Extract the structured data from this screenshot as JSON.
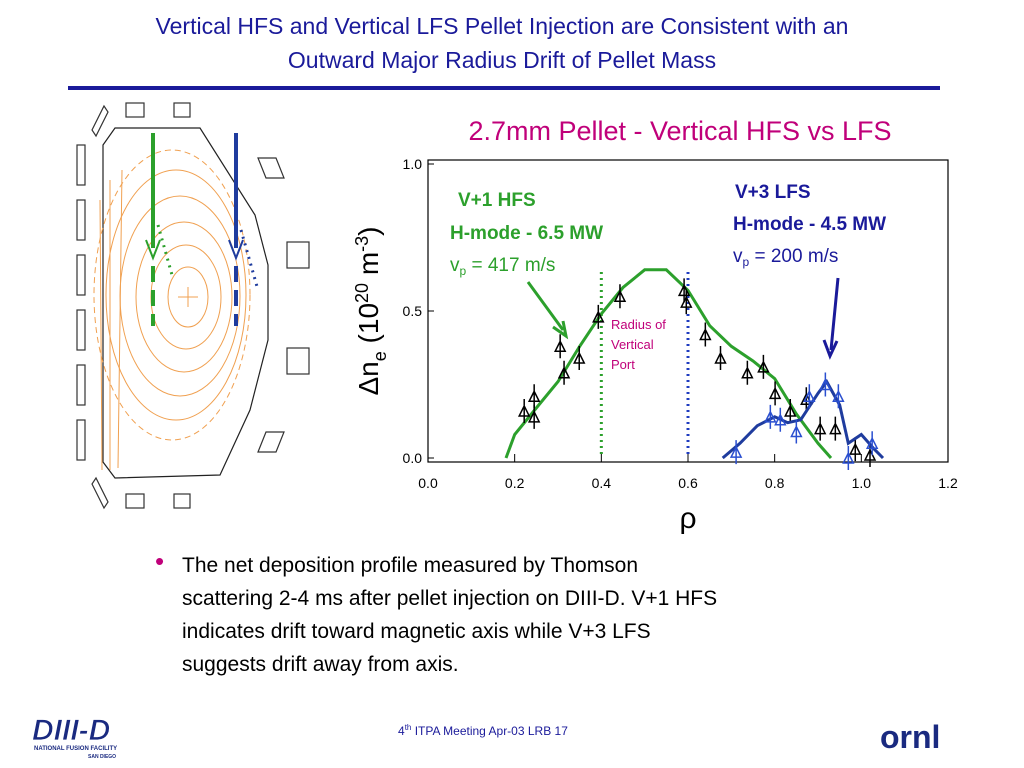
{
  "title_lines": [
    "Vertical HFS and Vertical LFS Pellet Injection are Consistent with an",
    "Outward Major Radius Drift of Pellet Mass"
  ],
  "chart_data": {
    "type": "line",
    "title": "2.7mm Pellet  -  Vertical HFS vs LFS",
    "xlabel": "ρ",
    "ylabel_parts": [
      "Δn",
      "e",
      " (10",
      "20",
      " m",
      "-3",
      ")"
    ],
    "xlim": [
      0,
      1.2
    ],
    "xticks": [
      {
        "value": 0,
        "label": "0.0"
      },
      0.2,
      0.4,
      0.6,
      0.8,
      {
        "value": 1,
        "label": "1.0"
      },
      1.2
    ],
    "ylim": [
      0,
      1
    ],
    "yticks": [
      {
        "value": 0,
        "label": "0.0"
      },
      0.5,
      {
        "value": 1,
        "label": "1.0"
      }
    ],
    "series": [
      {
        "style": "line",
        "color": "#2ca02c",
        "x": [
          0.18,
          0.2,
          0.25,
          0.3,
          0.35,
          0.4,
          0.45,
          0.5,
          0.55,
          0.6,
          0.65,
          0.7,
          0.75,
          0.8,
          0.85,
          0.9,
          0.93
        ],
        "values": [
          0.0,
          0.08,
          0.17,
          0.26,
          0.38,
          0.49,
          0.58,
          0.64,
          0.64,
          0.57,
          0.45,
          0.38,
          0.33,
          0.27,
          0.15,
          0.05,
          0.0
        ]
      },
      {
        "style": "markers",
        "color": "#000000",
        "x": [
          0.222,
          0.245,
          0.245,
          0.305,
          0.314,
          0.349,
          0.393,
          0.443,
          0.591,
          0.596,
          0.64,
          0.675,
          0.737,
          0.774,
          0.801,
          0.836,
          0.873,
          0.905,
          0.94,
          0.986,
          1.02
        ],
        "values": [
          0.16,
          0.21,
          0.14,
          0.38,
          0.29,
          0.34,
          0.48,
          0.55,
          0.57,
          0.53,
          0.42,
          0.34,
          0.29,
          0.31,
          0.22,
          0.16,
          0.2,
          0.1,
          0.1,
          0.03,
          0.01
        ]
      },
      {
        "style": "line",
        "color": "#1f3c9e",
        "x": [
          0.68,
          0.72,
          0.76,
          0.8,
          0.83,
          0.86,
          0.9,
          0.92,
          0.95,
          0.97,
          1.0,
          1.03,
          1.05
        ],
        "values": [
          0.0,
          0.05,
          0.11,
          0.14,
          0.12,
          0.13,
          0.22,
          0.26,
          0.18,
          0.05,
          0.08,
          0.03,
          0.0
        ]
      },
      {
        "style": "markers",
        "color": "#2a4fd0",
        "x": [
          0.711,
          0.79,
          0.813,
          0.85,
          0.88,
          0.917,
          0.947,
          0.97,
          1.025
        ],
        "values": [
          0.02,
          0.14,
          0.13,
          0.09,
          0.21,
          0.25,
          0.21,
          0.0,
          0.05
        ]
      }
    ],
    "vlines": [
      {
        "x": 0.4,
        "color": "#2ca02c"
      },
      {
        "x": 0.6,
        "color": "#1f3cc0"
      }
    ],
    "annotations": {
      "hfs": {
        "name": "V+1 HFS",
        "mode": "H-mode - 6.5 MW",
        "speed_parts": [
          "v",
          "p",
          " = 417 m/s"
        ]
      },
      "lfs": {
        "name": "V+3 LFS",
        "mode": "H-mode - 4.5 MW",
        "speed_parts": [
          "v",
          "p",
          " = 200 m/s"
        ]
      },
      "port_lines": [
        "Radius of",
        "Vertical",
        "Port"
      ]
    }
  },
  "bullet_lines": [
    "The net deposition profile measured by Thomson",
    "scattering 2-4 ms after pellet injection on DIII-D. V+1 HFS",
    "indicates drift toward magnetic axis while V+3 LFS",
    "suggests drift away from axis."
  ],
  "footer": {
    "sup": "th",
    "num": "4",
    "text": " ITPA Meeting  Apr-03   LRB     17"
  },
  "logo_left": {
    "name": "DIII-D",
    "sub1": "NATIONAL FUSION FACILITY",
    "sub2": "SAN DIEGO"
  },
  "logo_right": "ornl"
}
